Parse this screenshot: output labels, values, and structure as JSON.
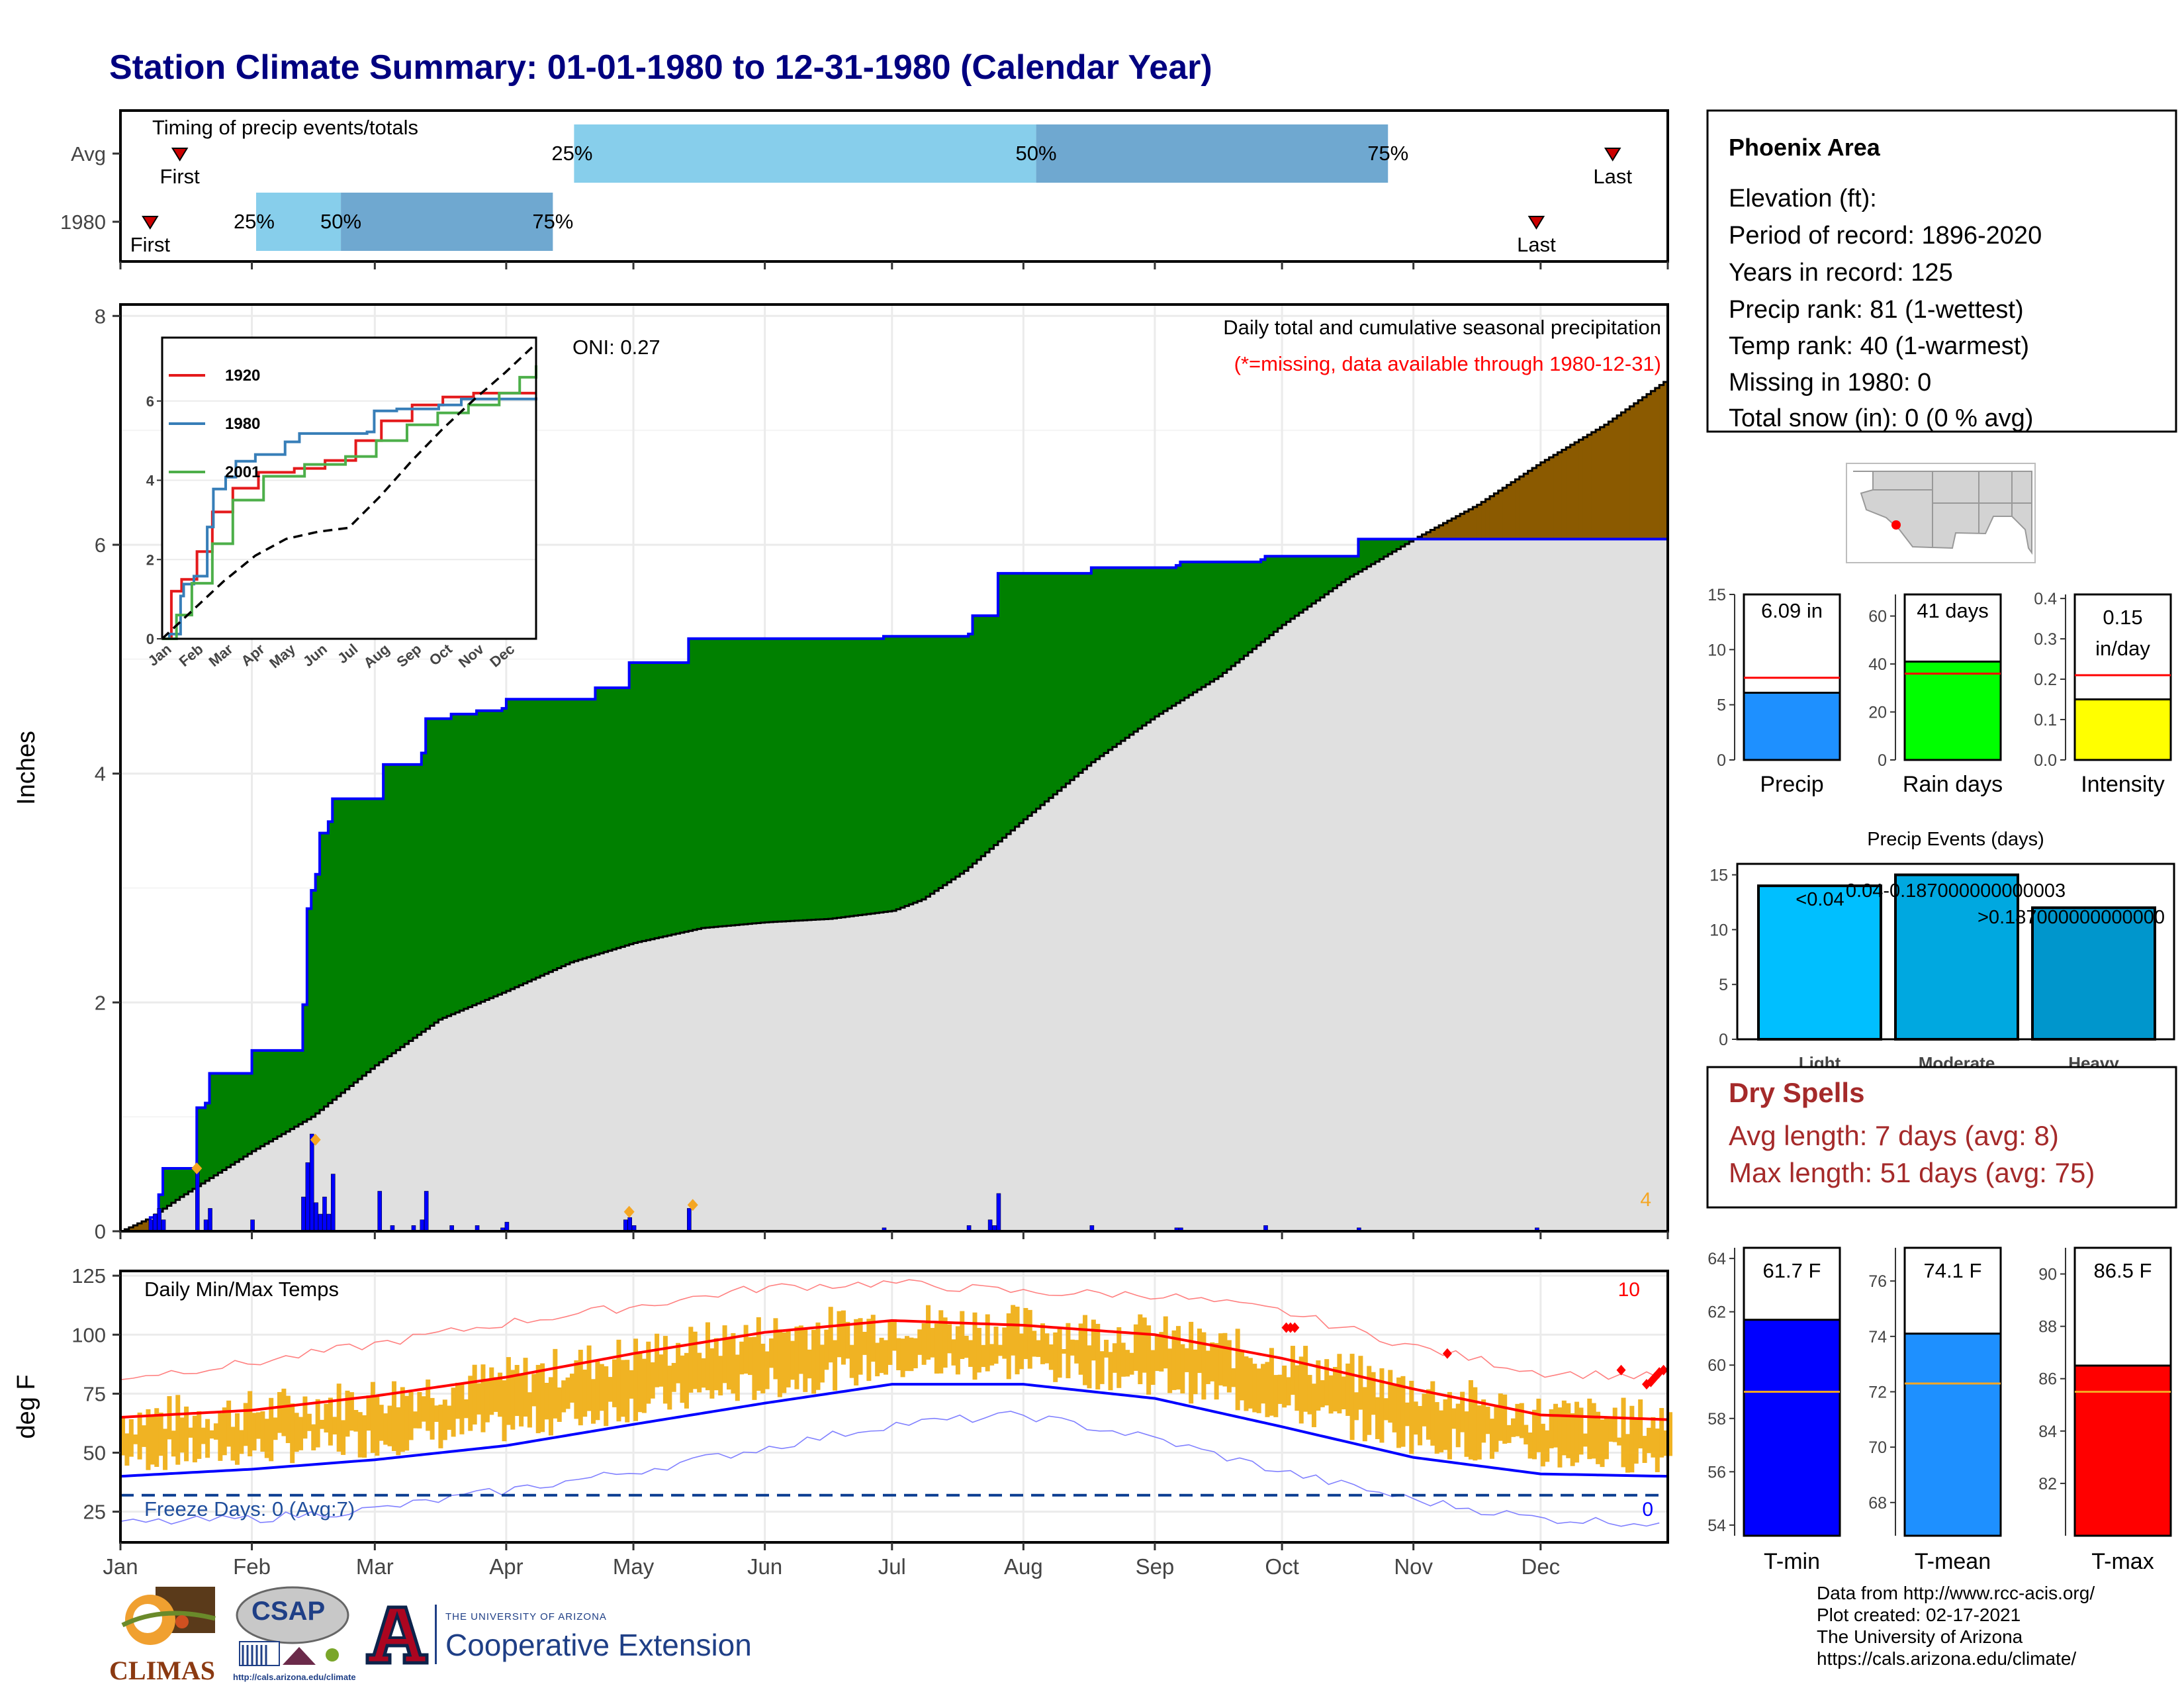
{
  "title": "Station Climate Summary: 01-01-1980 to 12-31-1980 (Calendar Year)",
  "colors": {
    "title": "#000080",
    "cumulative_current_line": "#0000ff",
    "surplus_fill": "#008000",
    "deficit_fill": "#8b5a00",
    "average_fill": "#e0e0e0",
    "daily_bars": "#0000ff",
    "marker_orange": "#f5a623",
    "timing_light": "#87ceeb",
    "timing_dark": "#6fa8d0",
    "temp_bars": "#f0b323",
    "tmax_avg": "#ff0000",
    "tmin_avg": "#0000ff",
    "record_high_line": "#ff8080",
    "record_low_line": "#8080ff",
    "freeze_line": "#0b3d91",
    "precip_bar": "#1e90ff",
    "raindays_bar": "#00ff00",
    "intensity_bar": "#ffff00",
    "light_bar": "#00bfff",
    "moderate_bar": "#00a8e0",
    "heavy_bar": "#0096cc",
    "dry_spells_text": "#a52a2a",
    "tmin_bar": "#0000ff",
    "tmean_bar": "#1e90ff",
    "tmax_bar": "#ff0000"
  },
  "timing_panel": {
    "caption": "Timing of precip events/totals",
    "rows": [
      {
        "label": "Avg",
        "first_day": 15,
        "p25_day": 108,
        "p50_day": 217,
        "p75_day": 300,
        "last_day": 353,
        "first_text": "First",
        "last_text": "Last",
        "p25_text": "25%",
        "p50_text": "50%",
        "p75_text": "75%"
      },
      {
        "label": "1980",
        "first_day": 8,
        "p25_day": 33,
        "p50_day": 53,
        "p75_day": 103,
        "last_day": 335,
        "first_text": "First",
        "last_text": "Last",
        "p25_text": "25%",
        "p50_text": "50%",
        "p75_text": "75%"
      }
    ]
  },
  "precip_panel": {
    "ylabel": "Inches",
    "y_ticks": [
      0,
      2,
      4,
      6,
      8
    ],
    "ylim": [
      0,
      8.1
    ],
    "header": "Daily total and cumulative seasonal precipitation",
    "missing_note": "(*=missing, data available through 1980-12-31)",
    "oni": "ONI: 0.27",
    "count_label": "4",
    "x_month_days": [
      1,
      32,
      61,
      92,
      122,
      153,
      183,
      214,
      245,
      275,
      306,
      336,
      366
    ],
    "cum_1980": [
      [
        1,
        0.0
      ],
      [
        8,
        0.12
      ],
      [
        10,
        0.32
      ],
      [
        11,
        0.55
      ],
      [
        18,
        0.55
      ],
      [
        19,
        1.08
      ],
      [
        21,
        1.12
      ],
      [
        22,
        1.38
      ],
      [
        31,
        1.38
      ],
      [
        32,
        1.58
      ],
      [
        43,
        1.58
      ],
      [
        44,
        1.98
      ],
      [
        45,
        2.82
      ],
      [
        46,
        2.98
      ],
      [
        47,
        3.12
      ],
      [
        48,
        3.48
      ],
      [
        50,
        3.58
      ],
      [
        51,
        3.78
      ],
      [
        62,
        3.78
      ],
      [
        63,
        4.08
      ],
      [
        72,
        4.18
      ],
      [
        73,
        4.48
      ],
      [
        79,
        4.52
      ],
      [
        85,
        4.55
      ],
      [
        91,
        4.57
      ],
      [
        92,
        4.65
      ],
      [
        112,
        4.65
      ],
      [
        113,
        4.75
      ],
      [
        120,
        4.75
      ],
      [
        121,
        4.97
      ],
      [
        134,
        4.97
      ],
      [
        135,
        5.18
      ],
      [
        180,
        5.18
      ],
      [
        181,
        5.2
      ],
      [
        201,
        5.22
      ],
      [
        202,
        5.38
      ],
      [
        207,
        5.38
      ],
      [
        208,
        5.75
      ],
      [
        229,
        5.75
      ],
      [
        230,
        5.8
      ],
      [
        250,
        5.82
      ],
      [
        251,
        5.85
      ],
      [
        270,
        5.87
      ],
      [
        271,
        5.9
      ],
      [
        292,
        5.9
      ],
      [
        293,
        6.05
      ],
      [
        366,
        6.09
      ]
    ],
    "cum_avg": [
      [
        1,
        0.0
      ],
      [
        8,
        0.12
      ],
      [
        15,
        0.3
      ],
      [
        32,
        0.7
      ],
      [
        46,
        1.0
      ],
      [
        61,
        1.45
      ],
      [
        76,
        1.85
      ],
      [
        92,
        2.1
      ],
      [
        107,
        2.35
      ],
      [
        122,
        2.52
      ],
      [
        138,
        2.65
      ],
      [
        153,
        2.7
      ],
      [
        168,
        2.73
      ],
      [
        183,
        2.8
      ],
      [
        190,
        2.9
      ],
      [
        200,
        3.15
      ],
      [
        214,
        3.6
      ],
      [
        230,
        4.1
      ],
      [
        245,
        4.5
      ],
      [
        260,
        4.85
      ],
      [
        275,
        5.3
      ],
      [
        290,
        5.7
      ],
      [
        306,
        6.05
      ],
      [
        321,
        6.35
      ],
      [
        336,
        6.72
      ],
      [
        351,
        7.05
      ],
      [
        366,
        7.45
      ]
    ],
    "daily_bars": [
      [
        8,
        0.1
      ],
      [
        9,
        0.15
      ],
      [
        10,
        0.2
      ],
      [
        11,
        0.1
      ],
      [
        19,
        0.55
      ],
      [
        21,
        0.1
      ],
      [
        22,
        0.2
      ],
      [
        32,
        0.1
      ],
      [
        44,
        0.3
      ],
      [
        45,
        0.6
      ],
      [
        46,
        0.85
      ],
      [
        47,
        0.25
      ],
      [
        48,
        0.15
      ],
      [
        49,
        0.3
      ],
      [
        50,
        0.15
      ],
      [
        51,
        0.5
      ],
      [
        62,
        0.35
      ],
      [
        65,
        0.05
      ],
      [
        70,
        0.05
      ],
      [
        72,
        0.1
      ],
      [
        73,
        0.35
      ],
      [
        79,
        0.05
      ],
      [
        85,
        0.05
      ],
      [
        91,
        0.03
      ],
      [
        92,
        0.08
      ],
      [
        120,
        0.1
      ],
      [
        121,
        0.12
      ],
      [
        122,
        0.05
      ],
      [
        135,
        0.2
      ],
      [
        181,
        0.03
      ],
      [
        201,
        0.05
      ],
      [
        206,
        0.1
      ],
      [
        207,
        0.05
      ],
      [
        208,
        0.33
      ],
      [
        230,
        0.05
      ],
      [
        250,
        0.03
      ],
      [
        251,
        0.03
      ],
      [
        271,
        0.05
      ],
      [
        293,
        0.03
      ],
      [
        335,
        0.03
      ]
    ],
    "orange_markers": [
      [
        19,
        0.55
      ],
      [
        47,
        0.8
      ],
      [
        121,
        0.17
      ],
      [
        136,
        0.23
      ]
    ],
    "inset": {
      "y_ticks": [
        0,
        2,
        4,
        6
      ],
      "ylim": [
        0,
        7.6
      ],
      "x_labels": [
        "Jan",
        "Feb",
        "Mar",
        "Apr",
        "May",
        "Jun",
        "Jul",
        "Aug",
        "Sep",
        "Oct",
        "Nov",
        "Dec"
      ],
      "series": [
        {
          "name": "1920",
          "color": "#e41a1c",
          "points": [
            [
              1,
              0
            ],
            [
              10,
              1.2
            ],
            [
              20,
              1.5
            ],
            [
              35,
              2.2
            ],
            [
              50,
              3.2
            ],
            [
              70,
              3.8
            ],
            [
              95,
              4.2
            ],
            [
              130,
              4.3
            ],
            [
              160,
              4.5
            ],
            [
              190,
              5.0
            ],
            [
              215,
              5.5
            ],
            [
              245,
              5.9
            ],
            [
              275,
              6.1
            ],
            [
              305,
              6.2
            ],
            [
              366,
              6.2
            ]
          ]
        },
        {
          "name": "1980",
          "color": "#377eb8",
          "points": [
            [
              1,
              0
            ],
            [
              8,
              0.12
            ],
            [
              19,
              1.08
            ],
            [
              22,
              1.38
            ],
            [
              32,
              1.58
            ],
            [
              45,
              2.82
            ],
            [
              51,
              3.78
            ],
            [
              63,
              4.08
            ],
            [
              73,
              4.48
            ],
            [
              92,
              4.65
            ],
            [
              121,
              4.97
            ],
            [
              135,
              5.18
            ],
            [
              201,
              5.22
            ],
            [
              208,
              5.75
            ],
            [
              230,
              5.8
            ],
            [
              271,
              5.9
            ],
            [
              293,
              6.05
            ],
            [
              366,
              6.09
            ]
          ]
        },
        {
          "name": "2001",
          "color": "#4daf4a",
          "points": [
            [
              1,
              0
            ],
            [
              15,
              0.6
            ],
            [
              30,
              1.4
            ],
            [
              50,
              2.4
            ],
            [
              70,
              3.5
            ],
            [
              100,
              4.1
            ],
            [
              140,
              4.4
            ],
            [
              180,
              4.6
            ],
            [
              210,
              5.0
            ],
            [
              240,
              5.4
            ],
            [
              270,
              5.7
            ],
            [
              300,
              5.9
            ],
            [
              330,
              6.2
            ],
            [
              350,
              6.6
            ],
            [
              366,
              6.9
            ]
          ]
        }
      ],
      "avg_points": [
        [
          1,
          0
        ],
        [
          30,
          0.7
        ],
        [
          61,
          1.45
        ],
        [
          92,
          2.1
        ],
        [
          122,
          2.52
        ],
        [
          153,
          2.7
        ],
        [
          183,
          2.8
        ],
        [
          214,
          3.6
        ],
        [
          245,
          4.5
        ],
        [
          275,
          5.3
        ],
        [
          306,
          6.05
        ],
        [
          336,
          6.72
        ],
        [
          366,
          7.45
        ]
      ]
    }
  },
  "temp_panel": {
    "ylabel": "deg F",
    "y_ticks": [
      25,
      50,
      75,
      100,
      125
    ],
    "ylim": [
      12,
      127
    ],
    "header": "Daily Min/Max Temps",
    "freeze_label": "Freeze Days: 0 (Avg:7)",
    "high_count": "10",
    "low_count": "0",
    "freeze_value": 32,
    "x_labels": [
      "Jan",
      "Feb",
      "Mar",
      "Apr",
      "May",
      "Jun",
      "Jul",
      "Aug",
      "Sep",
      "Oct",
      "Nov",
      "Dec"
    ],
    "avg_tmax": [
      [
        1,
        65
      ],
      [
        32,
        68
      ],
      [
        61,
        74
      ],
      [
        92,
        82
      ],
      [
        122,
        92
      ],
      [
        153,
        101
      ],
      [
        183,
        106
      ],
      [
        214,
        104
      ],
      [
        245,
        100
      ],
      [
        275,
        90
      ],
      [
        306,
        77
      ],
      [
        336,
        66
      ],
      [
        366,
        64
      ]
    ],
    "avg_tmin": [
      [
        1,
        40
      ],
      [
        32,
        43
      ],
      [
        61,
        47
      ],
      [
        92,
        53
      ],
      [
        122,
        62
      ],
      [
        153,
        71
      ],
      [
        183,
        79
      ],
      [
        214,
        79
      ],
      [
        245,
        73
      ],
      [
        275,
        61
      ],
      [
        306,
        48
      ],
      [
        336,
        41
      ],
      [
        366,
        40
      ]
    ],
    "record_high": [
      [
        1,
        82
      ],
      [
        32,
        88
      ],
      [
        61,
        96
      ],
      [
        92,
        105
      ],
      [
        122,
        112
      ],
      [
        153,
        120
      ],
      [
        183,
        122
      ],
      [
        214,
        118
      ],
      [
        245,
        117
      ],
      [
        275,
        110
      ],
      [
        306,
        95
      ],
      [
        336,
        84
      ],
      [
        366,
        82
      ]
    ],
    "record_low": [
      [
        1,
        20
      ],
      [
        32,
        22
      ],
      [
        61,
        26
      ],
      [
        92,
        34
      ],
      [
        122,
        42
      ],
      [
        153,
        52
      ],
      [
        183,
        62
      ],
      [
        214,
        66
      ],
      [
        245,
        56
      ],
      [
        275,
        42
      ],
      [
        306,
        30
      ],
      [
        336,
        22
      ],
      [
        366,
        20
      ]
    ],
    "record_high_markers": [
      [
        276,
        103
      ],
      [
        277,
        103
      ],
      [
        278,
        103
      ],
      [
        314,
        92
      ],
      [
        355,
        85
      ],
      [
        361,
        79
      ],
      [
        362,
        80
      ],
      [
        363,
        82
      ],
      [
        364,
        84
      ],
      [
        365,
        85
      ]
    ]
  },
  "station_info": {
    "name": "Phoenix Area",
    "elevation": "Elevation (ft):",
    "period": "Period of record: 1896-2020",
    "years": "Years in record: 125",
    "precip_rank": "Precip rank: 81 (1-wettest)",
    "temp_rank": "Temp rank: 40 (1-warmest)",
    "missing": "Missing in 1980: 0",
    "snow": "Total snow (in): 0 (0 % avg)"
  },
  "small_bars": [
    {
      "label": "Precip",
      "value_text": "6.09 in",
      "value": 6.09,
      "avg": 7.45,
      "ylim": [
        0,
        15
      ],
      "ticks": [
        0,
        5,
        10,
        15
      ],
      "color_key": "precip_bar"
    },
    {
      "label": "Rain days",
      "value_text": "41 days",
      "value": 41,
      "avg": 36,
      "ylim": [
        0,
        69
      ],
      "ticks": [
        0,
        20,
        40,
        60
      ],
      "color_key": "raindays_bar"
    },
    {
      "label": "Intensity",
      "value_text_1": "0.15",
      "value_text_2": "in/day",
      "value": 0.15,
      "avg": 0.21,
      "ylim": [
        0,
        0.41
      ],
      "ticks": [
        0.0,
        0.1,
        0.2,
        0.3,
        0.4
      ],
      "color_key": "intensity_bar"
    }
  ],
  "precip_events": {
    "title": "Precip Events (days)",
    "ticks": [
      0,
      5,
      10,
      15
    ],
    "ylim": [
      0,
      16
    ],
    "bars": [
      {
        "category": "Light",
        "value": 14,
        "label": "<0.04",
        "color_key": "light_bar"
      },
      {
        "category": "Moderate",
        "value": 15,
        "label": "0.04-0.187000000000003",
        "color_key": "moderate_bar"
      },
      {
        "category": "Heavy",
        "value": 12,
        "label": ">0.187000000000000",
        "color_key": "heavy_bar"
      }
    ]
  },
  "dry_spells": {
    "title": "Dry Spells",
    "avg_length": "Avg length: 7 days (avg: 8)",
    "max_length": "Max length: 51 days (avg: 75)"
  },
  "temp_bars": [
    {
      "label": "T-min",
      "value_text": "61.7 F",
      "value": 61.7,
      "avg": 59.0,
      "ylim": [
        53.6,
        64.4
      ],
      "ticks": [
        54,
        56,
        58,
        60,
        62,
        64
      ],
      "color_key": "tmin_bar"
    },
    {
      "label": "T-mean",
      "value_text": "74.1 F",
      "value": 74.1,
      "avg": 72.3,
      "ylim": [
        66.8,
        77.2
      ],
      "ticks": [
        68,
        70,
        72,
        74,
        76
      ],
      "color_key": "tmean_bar"
    },
    {
      "label": "T-max",
      "value_text": "86.5 F",
      "value": 86.5,
      "avg": 85.5,
      "ylim": [
        80.0,
        91.0
      ],
      "ticks": [
        82,
        84,
        86,
        88,
        90
      ],
      "color_key": "tmax_bar"
    }
  ],
  "footer": {
    "line1": "Data from http://www.rcc-acis.org/",
    "line2": "Plot created: 02-17-2021",
    "line3": "The University of Arizona",
    "line4": "https://cals.arizona.edu/climate/",
    "climas": "CLIMAS",
    "csap": "CSAP",
    "csap_url": "http://cals.arizona.edu/climate",
    "ua_small": "THE UNIVERSITY OF ARIZONA",
    "ua_big": "Cooperative Extension"
  },
  "chart_data": [
    {
      "type": "bar",
      "title": "",
      "categories": [
        "Avg",
        "1980"
      ],
      "series": [
        {
          "name": "25%",
          "values": [
            108,
            33
          ]
        },
        {
          "name": "50%",
          "values": [
            217,
            53
          ]
        },
        {
          "name": "75%",
          "values": [
            300,
            103
          ]
        }
      ],
      "xlabel": "",
      "ylabel": ""
    },
    {
      "type": "area",
      "title": "Daily total and cumulative seasonal precipitation",
      "xlabel": "",
      "ylabel": "Inches",
      "ylim": [
        0,
        8.1
      ]
    },
    {
      "type": "line",
      "title": "Daily Min/Max Temps",
      "xlabel": "",
      "ylabel": "deg F",
      "ylim": [
        12,
        127
      ]
    },
    {
      "type": "bar",
      "categories": [
        "Precip",
        "Rain days",
        "Intensity"
      ],
      "values": [
        6.09,
        41,
        0.15
      ]
    },
    {
      "type": "bar",
      "title": "Precip Events (days)",
      "categories": [
        "Light",
        "Moderate",
        "Heavy"
      ],
      "values": [
        14,
        15,
        12
      ]
    },
    {
      "type": "bar",
      "categories": [
        "T-min",
        "T-mean",
        "T-max"
      ],
      "values": [
        61.7,
        74.1,
        86.5
      ]
    }
  ]
}
